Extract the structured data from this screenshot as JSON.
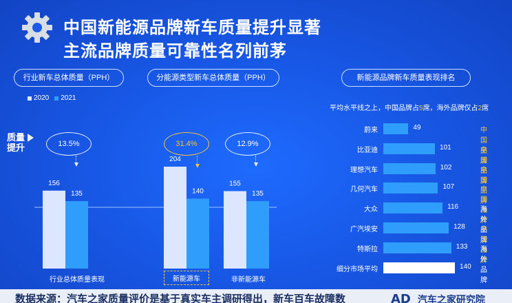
{
  "header": {
    "title_line1": "中国新能源品牌新车质量提升显著",
    "title_line2": "主流品牌质量可靠性名列前茅"
  },
  "panels": {
    "left_title": "行业新车总体质量（PPH）",
    "middle_title": "分能源类型新车总体质量（PPH）",
    "right_title": "新能源品牌新车质量表现排名"
  },
  "colors": {
    "c2020": "#dce6ff",
    "c2021": "#2f9dfb",
    "highlight": "#f4c534"
  },
  "legend": {
    "y2020": "2020",
    "y2021": "2021"
  },
  "axis_note": {
    "line1": "质量",
    "line2": "提升"
  },
  "improvement": [
    {
      "label": "13.5%",
      "highlight": false
    },
    {
      "label": "31.4%",
      "highlight": true
    },
    {
      "label": "12.9%",
      "highlight": false
    }
  ],
  "chart_data": [
    {
      "type": "bar",
      "categories": [
        "行业总体质量表现",
        "新能源车",
        "非新能源车"
      ],
      "series": [
        {
          "name": "2020",
          "values": [
            156,
            204,
            155
          ]
        },
        {
          "name": "2021",
          "values": [
            135,
            140,
            135
          ]
        }
      ],
      "ylabel": "PPH",
      "annotations": [
        "13.5%",
        "31.4%",
        "12.9%"
      ]
    },
    {
      "type": "bar",
      "orientation": "horizontal",
      "subtitle_parts": [
        "平均水平线之上，中国品牌占",
        "5",
        "席，海外品牌仅占",
        "2",
        "席"
      ],
      "categories": [
        "蔚来",
        "比亚迪",
        "理想汽车",
        "几何汽车",
        "大众",
        "广汽埃安",
        "特斯拉",
        "细分市场平均"
      ],
      "values": [
        49,
        101,
        102,
        107,
        116,
        128,
        133,
        140
      ],
      "origin": [
        "中国品牌",
        "中国品牌",
        "中国品牌",
        "中国品牌",
        "海外品牌",
        "中国品牌",
        "海外品牌",
        ""
      ]
    }
  ],
  "footer": {
    "source": "数据来源：汽车之家质量评价是基于真实车主调研得出，新车百车故障数",
    "logo": "AD",
    "brand": "汽车之家研究院"
  }
}
